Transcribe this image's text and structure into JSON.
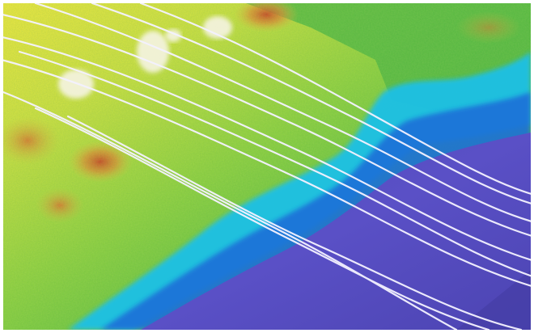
{
  "image": {
    "kind": "lidar-elevation-relief",
    "palette": [
      "#f2e23c",
      "#b8de3a",
      "#5fc43c",
      "#2fb04a",
      "#1ec0e6",
      "#1e6fd8",
      "#4a45b0",
      "#5b4fc4",
      "#e0732c",
      "#c03a1e"
    ],
    "overlay_line_color": "#f4f2ff",
    "overlay_line_count": 10,
    "colors": {
      "high_ground": "#f2e23c",
      "vegetation": "#5fc43c",
      "shoreline": "#1ec0e6",
      "water": "#5b4fc4",
      "peaks": "#d8562a"
    }
  }
}
